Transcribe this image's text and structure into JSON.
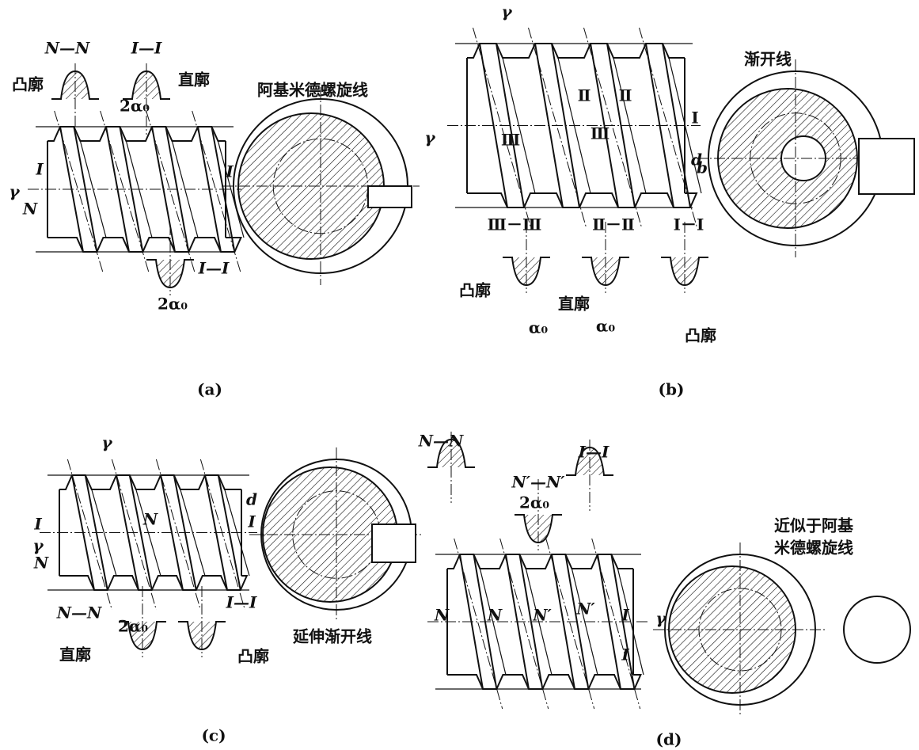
{
  "panels": [
    {
      "caption": "(a)",
      "labels": [
        "N—N",
        "I—I",
        "凸廓",
        "直廓",
        "2α₀",
        "阿基米德螺旋线",
        "γ",
        "I",
        "I",
        "N",
        "I—I",
        "2α₀"
      ]
    },
    {
      "caption": "(b)",
      "labels": [
        "γ",
        "γ",
        "Ⅱ",
        "Ⅱ",
        "Ⅰ",
        "Ⅲ",
        "Ⅲ",
        "Ⅲ－Ⅲ",
        "Ⅱ－Ⅱ",
        "Ⅰ－Ⅰ",
        "凸廓",
        "直廓",
        "凸廓",
        "α₀",
        "α₀",
        "渐开线",
        "d",
        "b"
      ]
    },
    {
      "caption": "(c)",
      "labels": [
        "γ",
        "d",
        "I",
        "I",
        "γ",
        "N",
        "N",
        "N—N",
        "2α₀",
        "直廓",
        "I—I",
        "凸廓",
        "延伸渐开线"
      ]
    },
    {
      "caption": "(d)",
      "labels": [
        "N—N",
        "N′—N′",
        "2α₀",
        "I—I",
        "近似于阿基",
        "米德螺旋线",
        "N",
        "N",
        "N′",
        "N′",
        "I",
        "I",
        "γ"
      ]
    }
  ]
}
